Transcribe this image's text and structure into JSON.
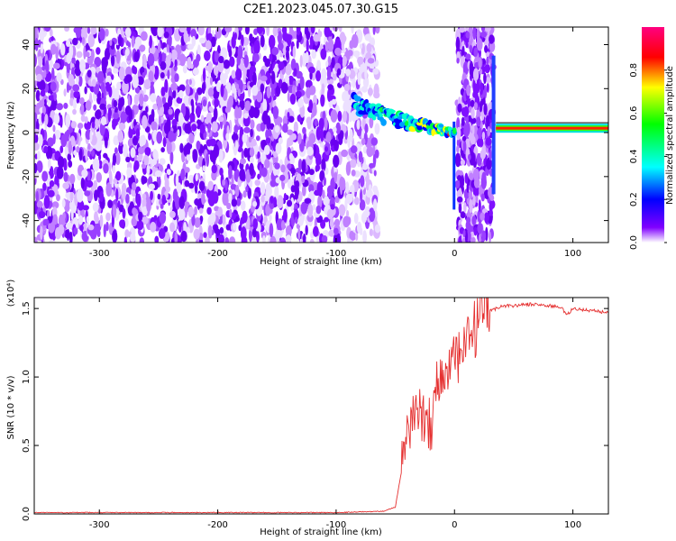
{
  "title": "C2E1.2023.045.07.30.G15",
  "chart_data": [
    {
      "type": "heatmap",
      "xlabel": "Height of straight line (km)",
      "ylabel": "Frequency (Hz)",
      "xlim": [
        -355,
        130
      ],
      "ylim": [
        -50,
        48
      ],
      "xticks": [
        -300,
        -200,
        -100,
        0,
        100
      ],
      "yticks": [
        -40,
        -20,
        0,
        20,
        40
      ],
      "colorbar": {
        "label": "Normalized spectral amplitude",
        "range": [
          0.0,
          1.0
        ],
        "ticks": [
          "0.0",
          "0.2",
          "0.4",
          "0.6",
          "0.8"
        ],
        "colors": [
          "#ffffff",
          "#8000ff",
          "#0000ff",
          "#00ffff",
          "#00ff00",
          "#ffff00",
          "#ff0000",
          "#ff0080"
        ]
      },
      "regions": [
        {
          "kind": "noise",
          "x": [
            -355,
            -75
          ],
          "f": [
            -50,
            48
          ]
        },
        {
          "kind": "signal-trace",
          "x": [
            -85,
            0
          ],
          "f_center_start": 15,
          "f_center_end": 0
        },
        {
          "kind": "noise-band",
          "x": [
            2,
            33
          ],
          "f": [
            -50,
            48
          ]
        },
        {
          "kind": "tone",
          "x": [
            35,
            130
          ],
          "f": 2
        }
      ]
    },
    {
      "type": "line",
      "xlabel": "Height of straight line (km)",
      "ylabel": "SNR (10 * v/v)",
      "y_multiplier": "(x10⁴)",
      "xlim": [
        -355,
        130
      ],
      "ylim": [
        0,
        1.58
      ],
      "xticks": [
        -300,
        -200,
        -100,
        0,
        100
      ],
      "yticks": [
        "0.0",
        "0.5",
        "1.0",
        "1.5"
      ],
      "series": [
        {
          "color": "#e53030",
          "x": [
            -355,
            -300,
            -200,
            -100,
            -60,
            -50,
            -45,
            -40,
            -35,
            -30,
            -25,
            -20,
            -15,
            -10,
            -5,
            0,
            5,
            10,
            15,
            20,
            25,
            30,
            35,
            40,
            50,
            60,
            70,
            80,
            90,
            95,
            100,
            110,
            120,
            130
          ],
          "y": [
            0.01,
            0.01,
            0.01,
            0.01,
            0.02,
            0.05,
            0.3,
            0.6,
            0.75,
            0.7,
            0.75,
            0.65,
            0.95,
            1.0,
            1.05,
            1.15,
            1.1,
            1.25,
            1.3,
            1.4,
            1.45,
            1.48,
            1.5,
            1.52,
            1.52,
            1.53,
            1.53,
            1.52,
            1.51,
            1.45,
            1.5,
            1.49,
            1.48,
            1.47
          ]
        }
      ]
    }
  ]
}
